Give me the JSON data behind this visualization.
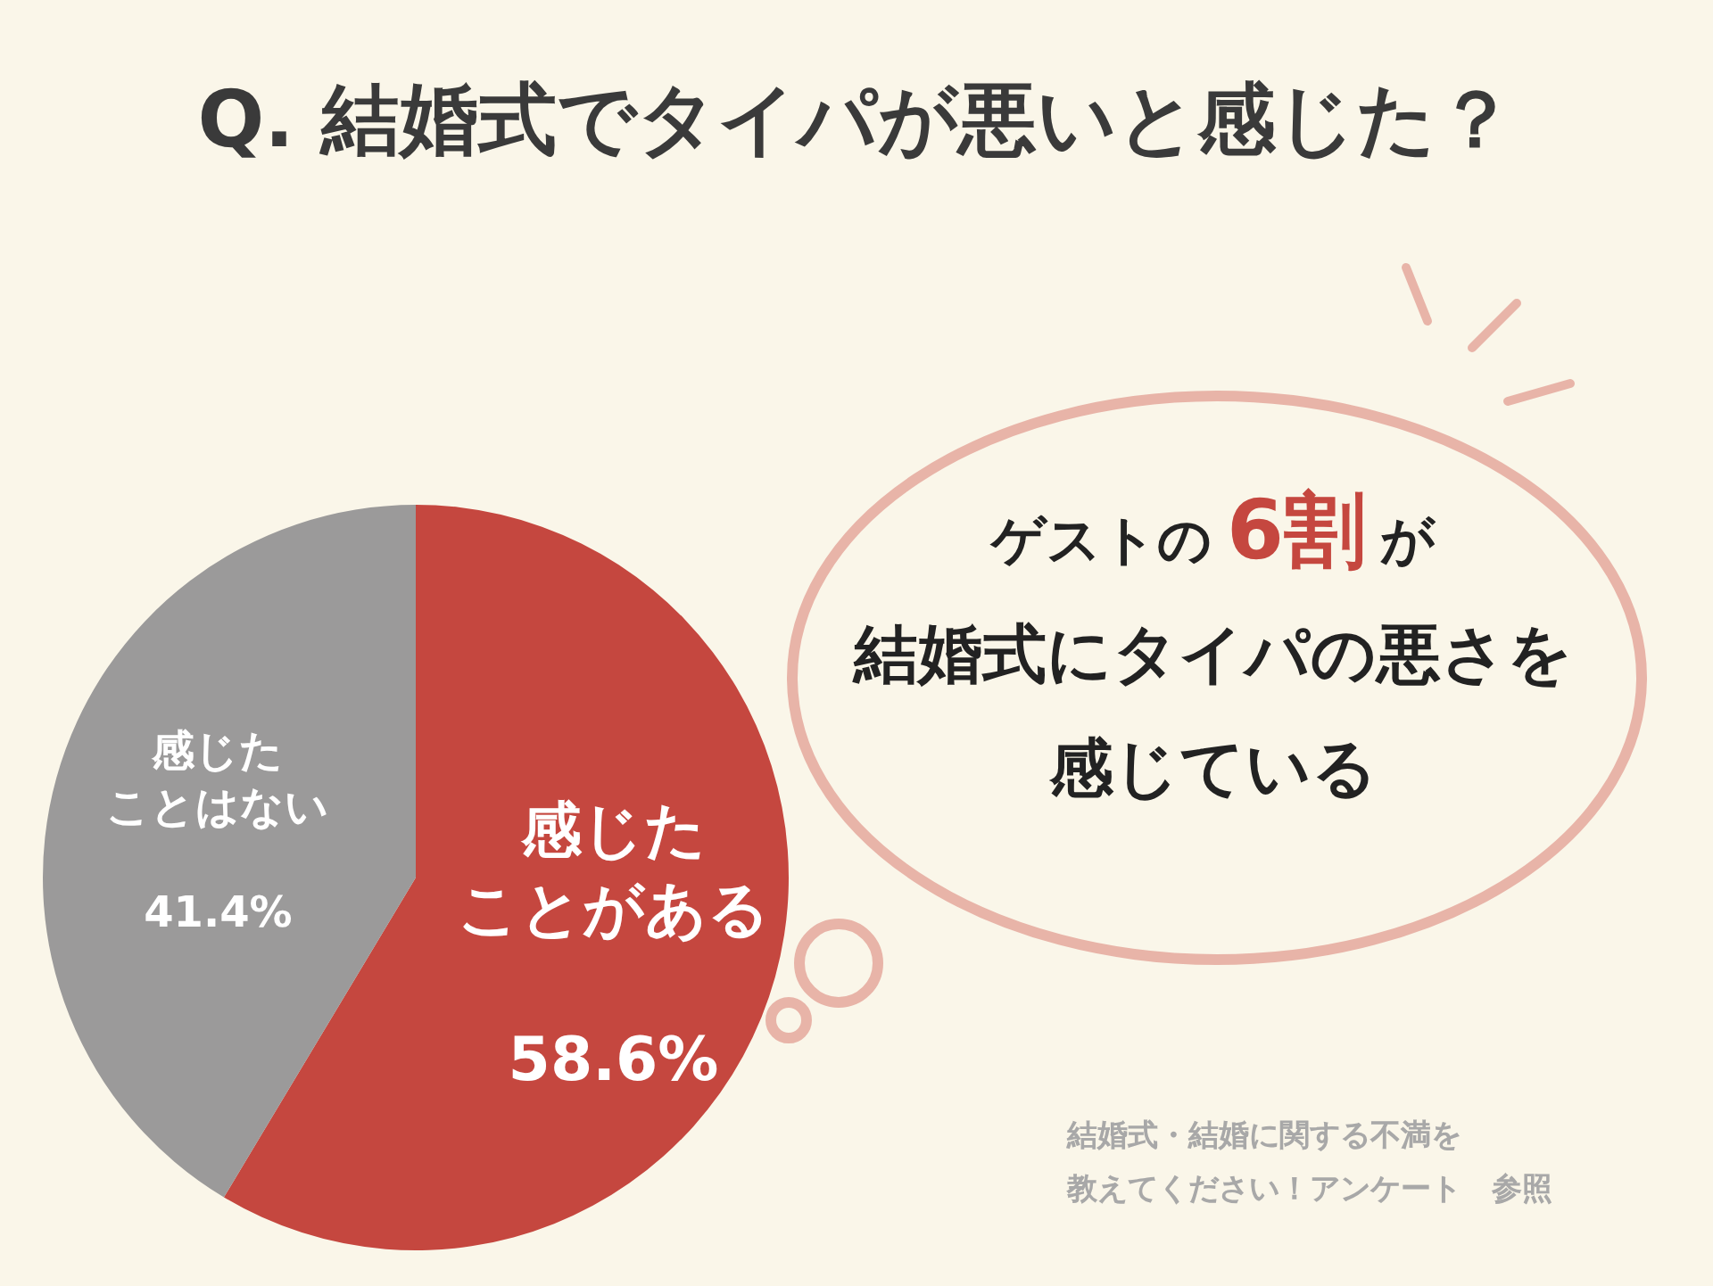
{
  "chart_data": {
    "type": "pie",
    "title": "Q. 結婚式でタイパが悪いと感じた？",
    "categories": [
      "感じたことがある",
      "感じたことはない"
    ],
    "values": [
      58.6,
      41.4
    ],
    "value_labels": [
      "58.6%",
      "41.4%"
    ],
    "colors": [
      "#c5473f",
      "#9b9a9a"
    ],
    "legend": false,
    "annotations": [
      "ゲストの",
      "6割",
      "が",
      "結婚式にタイパの悪さを",
      "感じている",
      "結婚式・結婚に関する不満を",
      "教えてください！アンケート　参照"
    ]
  }
}
